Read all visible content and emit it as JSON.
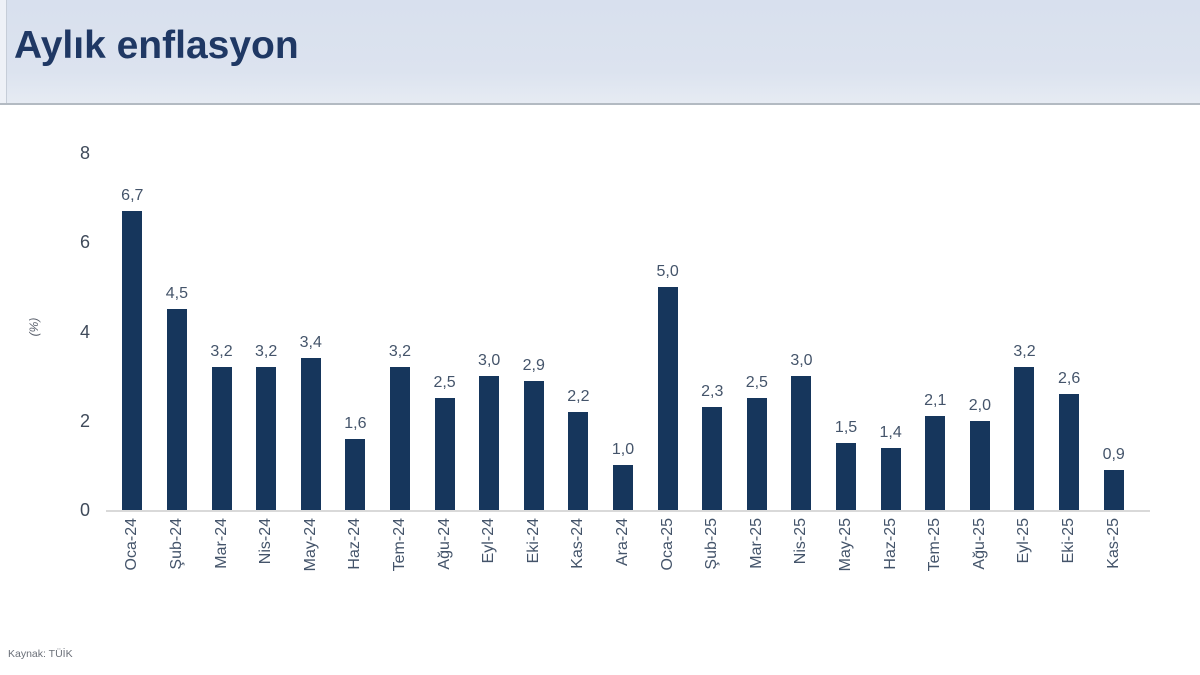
{
  "header": {
    "title": "Aylık enflasyon"
  },
  "source": "Kaynak: TÜİK",
  "colors": {
    "bar": "#16365c",
    "title": "#1f3864",
    "header_background": "#dce3ef",
    "axis_text": "#44546a",
    "baseline": "#d9d9d9"
  },
  "chart_data": {
    "type": "bar",
    "title": "Aylık enflasyon",
    "xlabel": "",
    "ylabel": "(%)",
    "ylim": [
      0,
      8
    ],
    "yticks": [
      0,
      2,
      4,
      6,
      8
    ],
    "grid": false,
    "legend": null,
    "categories": [
      "Oca-24",
      "Şub-24",
      "Mar-24",
      "Nis-24",
      "May-24",
      "Haz-24",
      "Tem-24",
      "Ağu-24",
      "Eyl-24",
      "Eki-24",
      "Kas-24",
      "Ara-24",
      "Oca-25",
      "Şub-25",
      "Mar-25",
      "Nis-25",
      "May-25",
      "Haz-25",
      "Tem-25",
      "Ağu-25",
      "Eyl-25",
      "Eki-25",
      "Kas-25"
    ],
    "values": [
      6.7,
      4.5,
      3.2,
      3.2,
      3.4,
      1.6,
      3.2,
      2.5,
      3.0,
      2.9,
      2.2,
      1.0,
      5.0,
      2.3,
      2.5,
      3.0,
      1.5,
      1.4,
      2.1,
      2.0,
      3.2,
      2.6,
      0.9
    ],
    "value_labels": [
      "6,7",
      "4,5",
      "3,2",
      "3,2",
      "3,4",
      "1,6",
      "3,2",
      "2,5",
      "3,0",
      "2,9",
      "2,2",
      "1,0",
      "5,0",
      "2,3",
      "2,5",
      "3,0",
      "1,5",
      "1,4",
      "2,1",
      "2,0",
      "3,2",
      "2,6",
      "0,9"
    ]
  }
}
